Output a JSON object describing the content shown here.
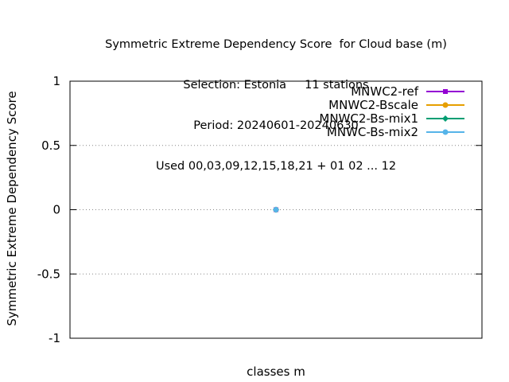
{
  "chart_data": {
    "type": "line",
    "title_lines": [
      "Symmetric Extreme Dependency Score  for Cloud base (m)",
      "Selection: Estonia     11 stations",
      "Period: 20240601-20240630",
      "Used 00,03,09,12,15,18,21 + 01 02 ... 12"
    ],
    "xlabel": "classes m",
    "ylabel": "Symmetric Extreme Dependency Score",
    "ylim": [
      -1,
      1
    ],
    "yticks": [
      1,
      0.5,
      0,
      -0.5,
      -1
    ],
    "ytick_labels": [
      "1",
      "0.5",
      "0",
      "-0.5",
      "-1"
    ],
    "grid": "horizontal dotted",
    "legend_position": "top-right",
    "series": [
      {
        "name": "MNWC2-ref",
        "color": "#9400d3",
        "marker": "square",
        "points": [
          {
            "x": 0.5,
            "y": 0
          }
        ]
      },
      {
        "name": "MNWC2-Bscale",
        "color": "#e69f00",
        "marker": "circle",
        "points": [
          {
            "x": 0.5,
            "y": 0
          }
        ]
      },
      {
        "name": "MNWC2-Bs-mix1",
        "color": "#009e73",
        "marker": "diamond",
        "points": [
          {
            "x": 0.5,
            "y": 0
          }
        ]
      },
      {
        "name": "MNWC-Bs-mix2",
        "color": "#56b4e9",
        "marker": "circle",
        "points": [
          {
            "x": 0.5,
            "y": 0
          }
        ]
      }
    ],
    "xlim": [
      0,
      1
    ]
  }
}
